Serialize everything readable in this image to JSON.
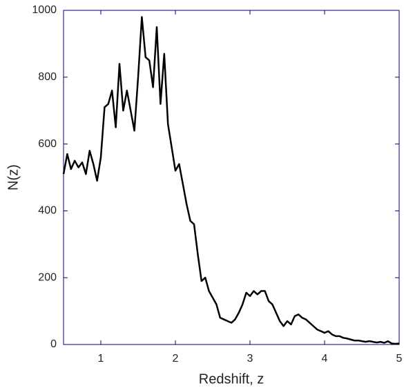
{
  "chart_data": {
    "type": "line",
    "x_label": "Redshift, z",
    "y_label": "N(z)",
    "x": [
      0.5,
      0.55,
      0.6,
      0.65,
      0.7,
      0.75,
      0.8,
      0.85,
      0.9,
      0.95,
      1.0,
      1.05,
      1.1,
      1.15,
      1.2,
      1.25,
      1.3,
      1.35,
      1.4,
      1.45,
      1.5,
      1.55,
      1.6,
      1.65,
      1.7,
      1.75,
      1.8,
      1.85,
      1.9,
      1.95,
      2.0,
      2.05,
      2.1,
      2.15,
      2.2,
      2.25,
      2.3,
      2.35,
      2.4,
      2.45,
      2.5,
      2.55,
      2.6,
      2.65,
      2.7,
      2.75,
      2.8,
      2.85,
      2.9,
      2.95,
      3.0,
      3.05,
      3.1,
      3.15,
      3.2,
      3.25,
      3.3,
      3.35,
      3.4,
      3.45,
      3.5,
      3.55,
      3.6,
      3.65,
      3.7,
      3.75,
      3.8,
      3.85,
      3.9,
      3.95,
      4.0,
      4.05,
      4.1,
      4.15,
      4.2,
      4.25,
      4.3,
      4.35,
      4.4,
      4.45,
      4.5,
      4.55,
      4.6,
      4.65,
      4.7,
      4.75,
      4.8,
      4.85,
      4.9,
      4.95,
      5.0
    ],
    "series": [
      {
        "color": "#000000",
        "values": [
          510,
          570,
          525,
          550,
          530,
          545,
          510,
          580,
          540,
          490,
          560,
          710,
          720,
          760,
          650,
          840,
          700,
          760,
          700,
          640,
          800,
          980,
          860,
          850,
          770,
          950,
          720,
          870,
          660,
          590,
          520,
          540,
          480,
          420,
          370,
          360,
          270,
          190,
          200,
          160,
          140,
          120,
          80,
          75,
          70,
          65,
          75,
          95,
          120,
          155,
          145,
          160,
          150,
          160,
          160,
          130,
          120,
          95,
          70,
          55,
          70,
          60,
          85,
          90,
          80,
          75,
          65,
          55,
          45,
          40,
          35,
          40,
          30,
          25,
          25,
          20,
          18,
          15,
          12,
          12,
          10,
          8,
          10,
          8,
          6,
          8,
          5,
          10,
          3,
          2,
          3
        ]
      }
    ],
    "xlim": [
      0.5,
      5
    ],
    "ylim": [
      0,
      1000
    ],
    "xticks": [
      1,
      2,
      3,
      4,
      5
    ],
    "yticks": [
      0,
      200,
      400,
      600,
      800,
      1000
    ],
    "frame_color": "#000080"
  }
}
